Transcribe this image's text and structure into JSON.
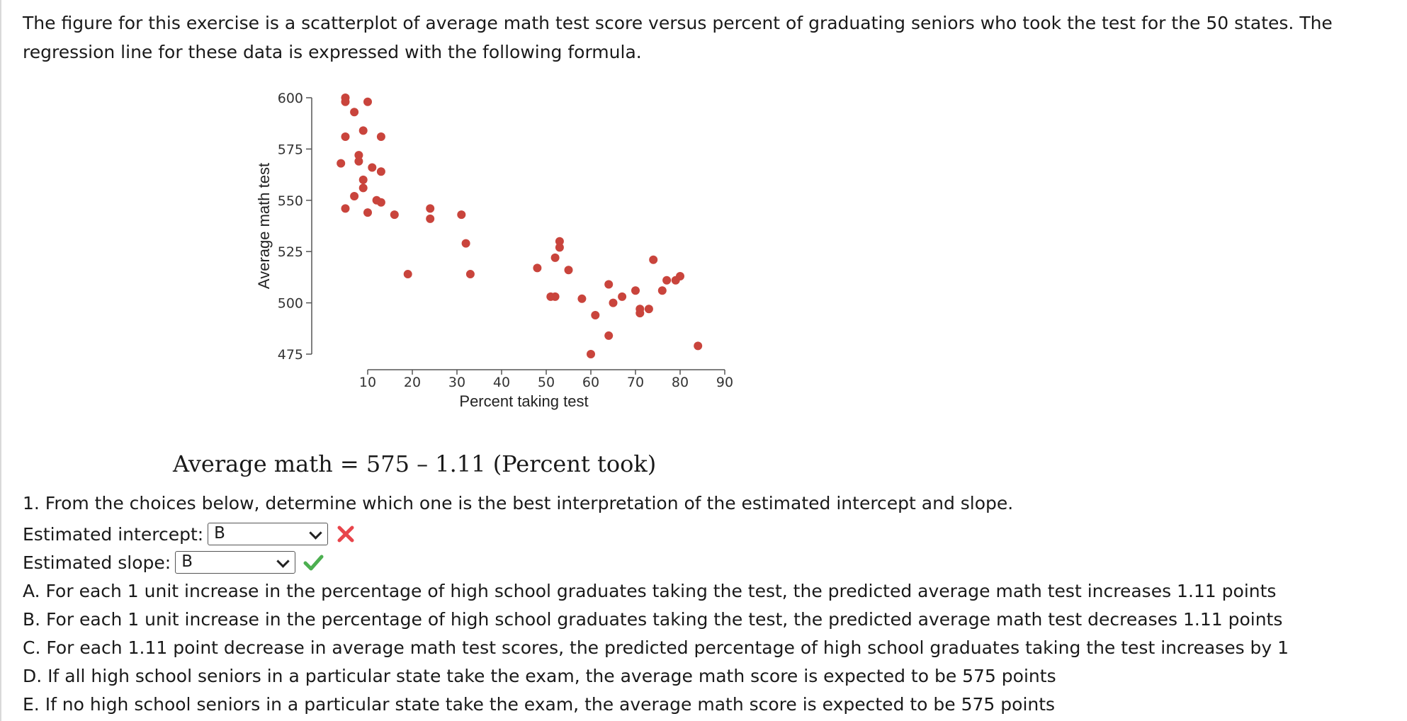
{
  "intro_text": "The figure for this exercise is a scatterplot of average math test score versus percent of graduating seniors who took the test for the 50 states. The regression line for these data is expressed with the following formula.",
  "formula": "Average math = 575 – 1.11 (Percent took)",
  "question": "1. From the choices below, determine which one is the best interpretation of the estimated intercept and slope.",
  "intercept": {
    "label": "Estimated intercept:",
    "value": "B",
    "status": "incorrect",
    "status_icon": "x-mark-icon",
    "status_color": "#e8454b"
  },
  "slope": {
    "label": "Estimated slope:",
    "value": "B",
    "status": "correct",
    "status_icon": "check-mark-icon",
    "status_color": "#4caf50"
  },
  "choices": [
    "A. For each 1 unit increase in the percentage of high school graduates taking the test, the predicted average math test increases 1.11 points",
    "B. For each 1 unit increase in the percentage of high school graduates taking the test, the predicted average math test decreases 1.11 points",
    "C. For each 1.11 point decrease in average math test scores, the predicted percentage of high school graduates taking the test increases by 1",
    "D. If all high school seniors in a particular state take the exam, the average math score is expected to be 575 points",
    "E. If no high school seniors in a particular state take the exam, the average math score is expected to be 575 points"
  ],
  "chart_data": {
    "type": "scatter",
    "xlabel": "Percent taking test",
    "ylabel": "Average math test",
    "xlim": [
      0,
      90
    ],
    "ylim": [
      475,
      600
    ],
    "xticks": [
      "10",
      "20",
      "30",
      "40",
      "50",
      "60",
      "70",
      "80",
      "90"
    ],
    "yticks": [
      "475",
      "500",
      "525",
      "550",
      "575",
      "600"
    ],
    "point_color": "#c9443c",
    "points": [
      [
        5,
        600
      ],
      [
        5,
        598
      ],
      [
        10,
        598
      ],
      [
        7,
        593
      ],
      [
        9,
        584
      ],
      [
        5,
        581
      ],
      [
        13,
        581
      ],
      [
        4,
        568
      ],
      [
        8,
        572
      ],
      [
        8,
        569
      ],
      [
        11,
        566
      ],
      [
        13,
        564
      ],
      [
        9,
        560
      ],
      [
        9,
        556
      ],
      [
        7,
        552
      ],
      [
        12,
        550
      ],
      [
        13,
        549
      ],
      [
        5,
        546
      ],
      [
        10,
        544
      ],
      [
        16,
        543
      ],
      [
        24,
        546
      ],
      [
        24,
        541
      ],
      [
        31,
        543
      ],
      [
        19,
        514
      ],
      [
        32,
        529
      ],
      [
        33,
        514
      ],
      [
        53,
        530
      ],
      [
        53,
        527
      ],
      [
        52,
        522
      ],
      [
        48,
        517
      ],
      [
        55,
        516
      ],
      [
        51,
        503
      ],
      [
        52,
        503
      ],
      [
        58,
        502
      ],
      [
        61,
        494
      ],
      [
        64,
        509
      ],
      [
        65,
        500
      ],
      [
        67,
        503
      ],
      [
        70,
        506
      ],
      [
        71,
        497
      ],
      [
        71,
        495
      ],
      [
        73,
        497
      ],
      [
        74,
        521
      ],
      [
        76,
        506
      ],
      [
        77,
        511
      ],
      [
        79,
        511
      ],
      [
        80,
        513
      ],
      [
        64,
        484
      ],
      [
        60,
        475
      ],
      [
        84,
        479
      ]
    ]
  }
}
